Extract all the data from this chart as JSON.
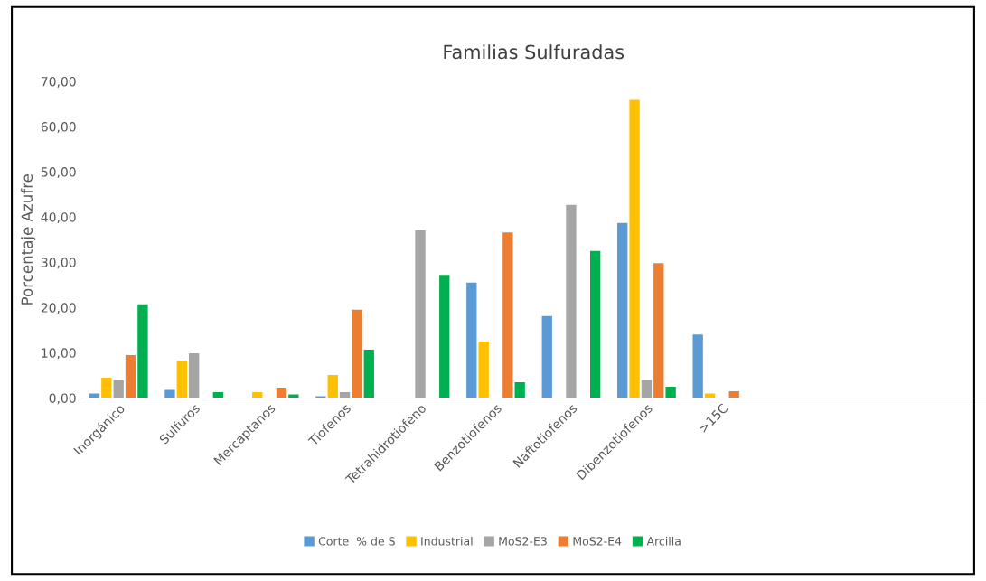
{
  "chart_data": {
    "type": "bar",
    "title": "Familias Sulfuradas",
    "ylabel": "Porcentaje Azufre",
    "categories": [
      "Inorgánico",
      "Sulfuros",
      "Mercaptanos",
      "Tiofenos",
      "Tetrahidrotiofeno",
      "Benzotiofenos",
      "Naftotiofenos",
      "Dibenzotiofenos",
      ">15C",
      null,
      null,
      null
    ],
    "series": [
      {
        "name": "Corte  % de S",
        "color": "#5b9bd5",
        "values": [
          1.0,
          1.8,
          null,
          0.4,
          null,
          25.5,
          18.1,
          38.7,
          14.0,
          null,
          null,
          null
        ]
      },
      {
        "name": "Industrial",
        "color": "#ffc000",
        "values": [
          4.5,
          8.3,
          1.3,
          5.1,
          null,
          12.5,
          null,
          65.9,
          1.0,
          null,
          null,
          null
        ]
      },
      {
        "name": "MoS2-E3",
        "color": "#a5a5a5",
        "values": [
          3.9,
          9.9,
          null,
          1.3,
          37.1,
          null,
          42.7,
          4.0,
          null,
          null,
          null,
          null
        ]
      },
      {
        "name": "MoS2-E4",
        "color": "#ed7d31",
        "values": [
          9.5,
          null,
          2.3,
          19.5,
          null,
          36.6,
          null,
          29.8,
          1.5,
          null,
          null,
          null
        ]
      },
      {
        "name": "Arcilla",
        "color": "#00b050",
        "values": [
          20.7,
          1.3,
          0.8,
          10.7,
          27.2,
          3.5,
          32.5,
          2.5,
          null,
          null,
          null,
          null
        ]
      }
    ],
    "ylim": [
      0,
      70
    ],
    "yticks": [
      {
        "value": 0,
        "label": "0,00"
      },
      {
        "value": 10,
        "label": "10,00"
      },
      {
        "value": 20,
        "label": "20,00"
      },
      {
        "value": 30,
        "label": "30,00"
      },
      {
        "value": 40,
        "label": "40,00"
      },
      {
        "value": 50,
        "label": "50,00"
      },
      {
        "value": 60,
        "label": "60,00"
      },
      {
        "value": 70,
        "label": "70,00"
      }
    ],
    "grid": false,
    "legend": "bottom"
  }
}
